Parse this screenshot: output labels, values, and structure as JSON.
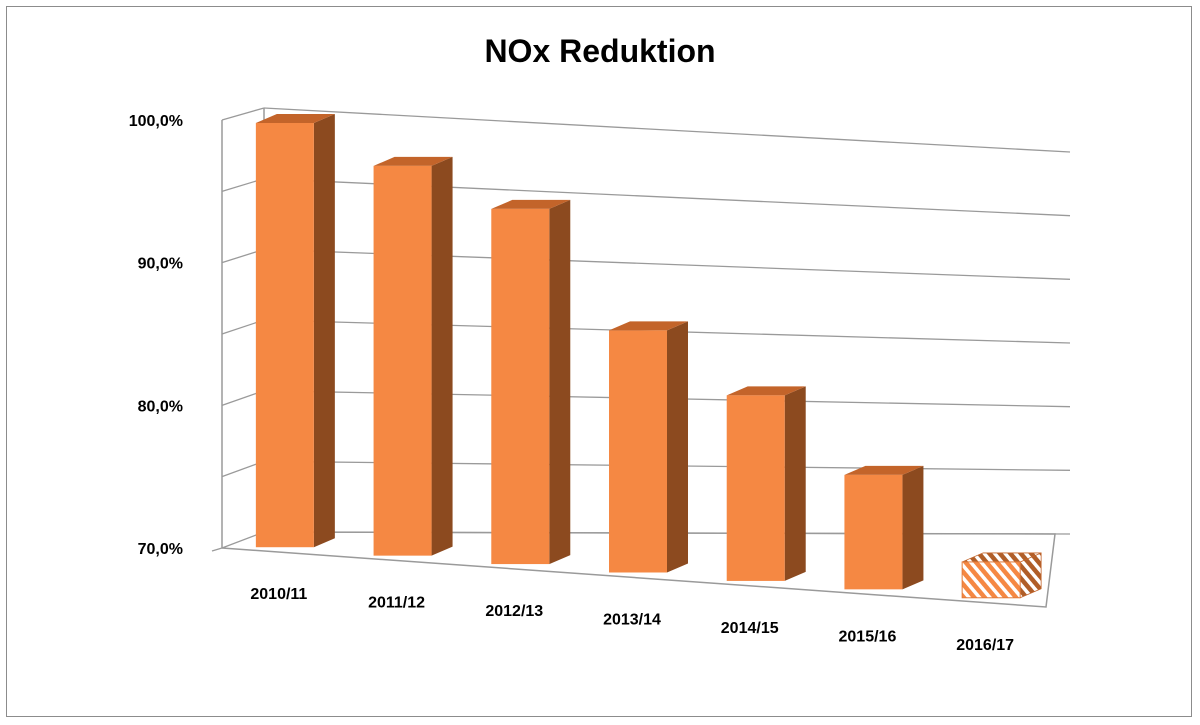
{
  "chart_data": {
    "type": "bar",
    "title": "NOx Reduktion",
    "xlabel": "",
    "ylabel": "",
    "categories": [
      "2010/11",
      "2011/12",
      "2012/13",
      "2013/14",
      "2014/15",
      "2015/16",
      "2016/17"
    ],
    "values": [
      100.0,
      97.5,
      95.0,
      87.0,
      83.0,
      78.0,
      72.5
    ],
    "ylim": [
      70,
      100
    ],
    "yticks": [
      "100,0%",
      "90,0%",
      "80,0%",
      "70,0%"
    ],
    "grid": true,
    "legend": "none",
    "style_3d": true,
    "colors": {
      "bar_front": "#f58843",
      "bar_side": "#8c4a1f",
      "bar_top": "#c3642a",
      "forecast_stripe": "#f58843",
      "gridline": "#9a9a9a",
      "border": "#8c8c8c"
    },
    "forecast_index": 6
  }
}
